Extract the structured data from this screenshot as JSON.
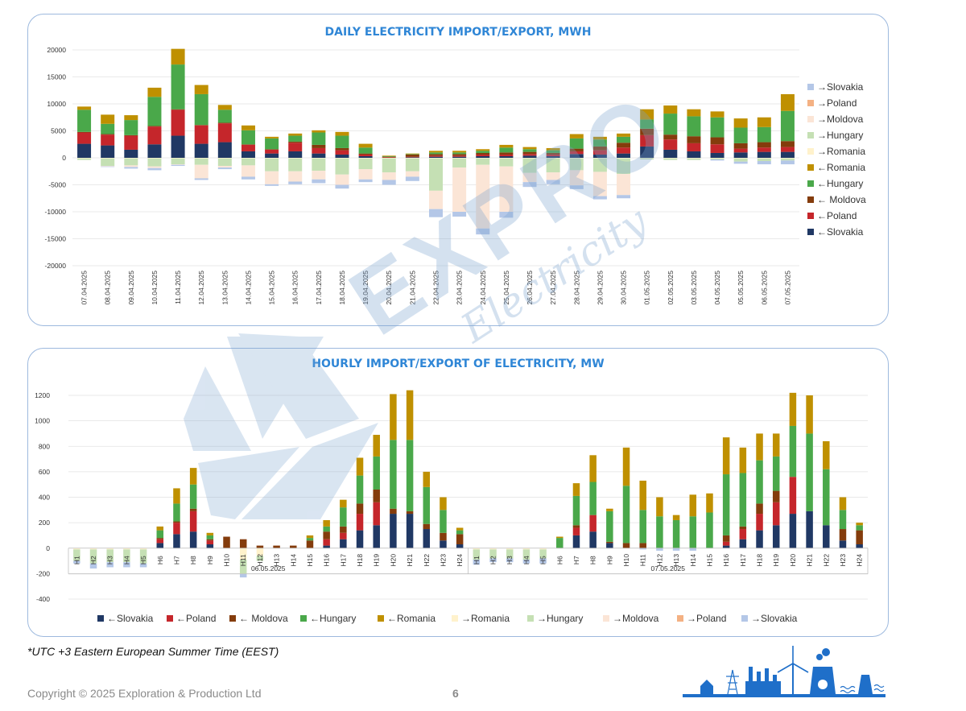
{
  "colors": {
    "imp_slovakia": "#203864",
    "imp_poland": "#c5262b",
    "imp_moldova": "#843c0c",
    "imp_hungary": "#4aa84a",
    "imp_romania": "#bf9000",
    "exp_romania": "#fff2cc",
    "exp_hungary": "#c5e0b4",
    "exp_moldova": "#fbe5d6",
    "exp_poland": "#f4b183",
    "exp_slovakia": "#b4c7e7",
    "title": "#2f86d6",
    "border": "#9db9de"
  },
  "daily": {
    "chart_data": {
      "type": "bar",
      "title": "DAILY ELECTRICITY IMPORT/EXPORT, MWH",
      "ylim": [
        -20000,
        20000
      ],
      "yticks": [
        20000,
        15000,
        10000,
        5000,
        0,
        -5000,
        -10000,
        -15000,
        -20000
      ],
      "grid": true,
      "legend_position": "right",
      "categories": [
        "07.04.2025",
        "08.04.2025",
        "09.04.2025",
        "10.04.2025",
        "11.04.2025",
        "12.04.2025",
        "13.04.2025",
        "14.04.2025",
        "15.04.2025",
        "16.04.2025",
        "17.04.2025",
        "18.04.2025",
        "19.04.2025",
        "20.04.2025",
        "21.04.2025",
        "22.04.2025",
        "23.04.2025",
        "24.04.2025",
        "25.04.2025",
        "26.04.2025",
        "27.04.2025",
        "28.04.2025",
        "29.04.2025",
        "30.04.2025",
        "01.05.2025",
        "02.05.2025",
        "03.05.2025",
        "04.05.2025",
        "05.05.2025",
        "06.05.2025",
        "07.05.2025"
      ],
      "series": [
        {
          "name": "←Slovakia",
          "key": "imp_slovakia",
          "values": [
            2600,
            2300,
            1500,
            2500,
            4100,
            2600,
            2900,
            1200,
            800,
            1200,
            800,
            600,
            300,
            0,
            100,
            200,
            200,
            300,
            300,
            400,
            300,
            700,
            600,
            800,
            2100,
            1500,
            1200,
            900,
            1000,
            1100,
            1100
          ]
        },
        {
          "name": "←Poland",
          "key": "imp_poland",
          "values": [
            2100,
            2000,
            2600,
            3300,
            4800,
            3400,
            3500,
            1200,
            700,
            1600,
            1000,
            800,
            300,
            100,
            100,
            200,
            200,
            300,
            300,
            300,
            300,
            500,
            800,
            1100,
            2100,
            1900,
            1500,
            1600,
            700,
            800,
            900
          ]
        },
        {
          "name": "← Moldova",
          "key": "imp_moldova",
          "values": [
            100,
            100,
            100,
            100,
            100,
            100,
            100,
            100,
            100,
            200,
            600,
            400,
            200,
            100,
            400,
            300,
            300,
            300,
            400,
            400,
            300,
            500,
            700,
            900,
            1200,
            900,
            1300,
            1300,
            1000,
            1000,
            1100
          ]
        },
        {
          "name": "←Hungary",
          "key": "imp_hungary",
          "values": [
            4100,
            1900,
            2800,
            5400,
            8300,
            5700,
            2400,
            2600,
            2000,
            1100,
            2300,
            2300,
            1100,
            100,
            100,
            300,
            300,
            400,
            900,
            500,
            500,
            1900,
            1300,
            1100,
            1700,
            3900,
            3700,
            3700,
            2900,
            2800,
            5600
          ]
        },
        {
          "name": "←Romania",
          "key": "imp_romania",
          "values": [
            600,
            1700,
            900,
            1700,
            2900,
            1700,
            900,
            900,
            300,
            400,
            400,
            700,
            700,
            100,
            100,
            300,
            300,
            300,
            500,
            400,
            400,
            800,
            500,
            600,
            1900,
            1500,
            1300,
            1100,
            1700,
            1800,
            3100
          ]
        },
        {
          "name": "→Romania",
          "key": "exp_romania",
          "values": [
            -100,
            -100,
            -100,
            -100,
            -100,
            -100,
            -100,
            -100,
            -100,
            -100,
            -100,
            -100,
            -100,
            -100,
            -100,
            -100,
            -100,
            -100,
            -100,
            -100,
            -100,
            -100,
            -100,
            -100,
            -100,
            -100,
            -100,
            -100,
            -100,
            -100,
            -100
          ]
        },
        {
          "name": "→Hungary",
          "key": "exp_hungary",
          "values": [
            -300,
            -1400,
            -1300,
            -1500,
            -1100,
            -1200,
            -1400,
            -1300,
            -2400,
            -2400,
            -2300,
            -3000,
            -2000,
            -2600,
            -2400,
            -6000,
            -1700,
            -1200,
            -1500,
            -2700,
            -2600,
            -2200,
            -2500,
            -2900,
            -200,
            -300,
            -300,
            -200,
            -600,
            -500,
            -400
          ]
        },
        {
          "name": "→Moldova",
          "key": "exp_moldova",
          "values": [
            0,
            -100,
            -300,
            -300,
            -100,
            -2500,
            -300,
            -2100,
            -2400,
            -1900,
            -1600,
            -1900,
            -1900,
            -1400,
            -1000,
            -3400,
            -8200,
            -11800,
            -8400,
            -1700,
            -1400,
            -2800,
            -4500,
            -3900,
            0,
            0,
            0,
            0,
            0,
            0,
            0
          ]
        },
        {
          "name": "→Poland",
          "key": "exp_poland",
          "values": [
            0,
            0,
            0,
            0,
            0,
            0,
            0,
            0,
            0,
            0,
            0,
            0,
            0,
            0,
            0,
            0,
            0,
            0,
            0,
            0,
            0,
            0,
            0,
            0,
            0,
            0,
            0,
            0,
            0,
            0,
            0
          ]
        },
        {
          "name": "→Slovakia",
          "key": "exp_slovakia",
          "values": [
            0,
            -100,
            -300,
            -400,
            -200,
            -300,
            -300,
            -500,
            -300,
            -500,
            -700,
            -700,
            -500,
            -900,
            -800,
            -1500,
            -900,
            -1100,
            -1100,
            -900,
            -800,
            -700,
            -600,
            -600,
            0,
            0,
            0,
            -200,
            -400,
            -600,
            -700
          ]
        }
      ],
      "legend_order": [
        "exp_slovakia",
        "exp_poland",
        "exp_moldova",
        "exp_hungary",
        "exp_romania",
        "imp_romania",
        "imp_hungary",
        "imp_moldova",
        "imp_poland",
        "imp_slovakia"
      ]
    }
  },
  "hourly": {
    "chart_data": {
      "type": "bar",
      "title": "HOURLY IMPORT/EXPORT OF ELECTRICITY, MW",
      "ylim": [
        -400,
        1200
      ],
      "yticks": [
        1200,
        1000,
        800,
        600,
        400,
        200,
        0,
        -200,
        -400
      ],
      "grid": true,
      "legend_position": "bottom",
      "groups": [
        {
          "label": "06.05.2025",
          "hours": [
            "H1",
            "H2",
            "H3",
            "H4",
            "H5",
            "H6",
            "H7",
            "H8",
            "H9",
            "H10",
            "H11",
            "H12",
            "H13",
            "H14",
            "H15",
            "H16",
            "H17",
            "H18",
            "H19",
            "H20",
            "H21",
            "H22",
            "H23",
            "H24"
          ]
        },
        {
          "label": "07.05.2025",
          "hours": [
            "H1",
            "H2",
            "H3",
            "H4",
            "H5",
            "H6",
            "H7",
            "H8",
            "H9",
            "H10",
            "H11",
            "H12",
            "H13",
            "H14",
            "H15",
            "H16",
            "H17",
            "H18",
            "H19",
            "H20",
            "H21",
            "H22",
            "H23",
            "H24"
          ]
        }
      ],
      "series": [
        {
          "name": "←Slovakia",
          "key": "imp_slovakia",
          "values": [
            0,
            0,
            0,
            0,
            0,
            40,
            110,
            130,
            30,
            0,
            0,
            0,
            0,
            0,
            0,
            20,
            70,
            140,
            180,
            270,
            270,
            150,
            60,
            30,
            0,
            0,
            0,
            0,
            0,
            0,
            100,
            130,
            40,
            0,
            0,
            0,
            0,
            0,
            0,
            20,
            70,
            140,
            180,
            270,
            290,
            180,
            60,
            30
          ]
        },
        {
          "name": "←Poland",
          "key": "imp_poland",
          "values": [
            0,
            0,
            0,
            0,
            0,
            30,
            90,
            160,
            30,
            0,
            0,
            0,
            0,
            0,
            0,
            50,
            50,
            130,
            180,
            0,
            0,
            0,
            0,
            0,
            0,
            0,
            0,
            0,
            0,
            0,
            60,
            130,
            0,
            0,
            0,
            0,
            0,
            0,
            0,
            30,
            80,
            130,
            180,
            290,
            0,
            0,
            0,
            0
          ]
        },
        {
          "name": "← Moldova",
          "key": "imp_moldova",
          "values": [
            0,
            0,
            0,
            0,
            0,
            10,
            10,
            20,
            10,
            90,
            70,
            20,
            20,
            20,
            60,
            60,
            50,
            80,
            100,
            40,
            20,
            40,
            60,
            80,
            0,
            0,
            0,
            0,
            0,
            0,
            20,
            0,
            10,
            40,
            40,
            0,
            0,
            0,
            0,
            50,
            20,
            80,
            90,
            0,
            0,
            0,
            90,
            110
          ]
        },
        {
          "name": "←Hungary",
          "key": "imp_hungary",
          "values": [
            0,
            0,
            0,
            0,
            0,
            60,
            140,
            190,
            30,
            0,
            0,
            0,
            0,
            0,
            20,
            40,
            150,
            220,
            260,
            540,
            560,
            290,
            180,
            30,
            0,
            0,
            0,
            0,
            0,
            80,
            230,
            260,
            240,
            450,
            260,
            250,
            220,
            250,
            280,
            480,
            420,
            340,
            270,
            400,
            610,
            440,
            150,
            40
          ]
        },
        {
          "name": "←Romania",
          "key": "imp_romania",
          "values": [
            0,
            0,
            0,
            0,
            0,
            30,
            120,
            130,
            20,
            0,
            0,
            0,
            0,
            0,
            20,
            50,
            60,
            140,
            170,
            360,
            390,
            120,
            100,
            20,
            0,
            0,
            0,
            0,
            0,
            10,
            100,
            210,
            20,
            300,
            230,
            150,
            40,
            170,
            150,
            290,
            200,
            210,
            180,
            260,
            300,
            220,
            100,
            20
          ]
        },
        {
          "name": "→Romania",
          "key": "exp_romania",
          "values": [
            -10,
            -10,
            -10,
            -10,
            -10,
            0,
            0,
            0,
            0,
            0,
            -90,
            -60,
            0,
            0,
            0,
            0,
            0,
            0,
            0,
            0,
            0,
            0,
            0,
            0,
            -10,
            -10,
            -10,
            -10,
            -10,
            0,
            0,
            0,
            0,
            0,
            0,
            0,
            0,
            0,
            0,
            0,
            0,
            0,
            0,
            0,
            0,
            0,
            0,
            0
          ]
        },
        {
          "name": "→Hungary",
          "key": "exp_hungary",
          "values": [
            -90,
            -110,
            -100,
            -100,
            -110,
            0,
            0,
            0,
            0,
            0,
            -110,
            -40,
            0,
            0,
            0,
            0,
            0,
            0,
            0,
            0,
            0,
            0,
            0,
            0,
            -80,
            -70,
            -70,
            -80,
            -70,
            0,
            0,
            0,
            0,
            0,
            0,
            0,
            0,
            0,
            0,
            0,
            0,
            0,
            0,
            0,
            0,
            0,
            0,
            0
          ]
        },
        {
          "name": "→Moldova",
          "key": "exp_moldova",
          "values": [
            0,
            0,
            0,
            0,
            0,
            0,
            0,
            0,
            0,
            0,
            0,
            0,
            0,
            0,
            0,
            0,
            0,
            0,
            0,
            0,
            0,
            0,
            0,
            0,
            0,
            0,
            0,
            0,
            0,
            0,
            0,
            0,
            0,
            0,
            0,
            0,
            0,
            0,
            0,
            0,
            0,
            0,
            0,
            0,
            0,
            0,
            0,
            0
          ]
        },
        {
          "name": "→Poland",
          "key": "exp_poland",
          "values": [
            0,
            0,
            0,
            0,
            0,
            0,
            0,
            0,
            0,
            0,
            0,
            0,
            0,
            0,
            0,
            0,
            0,
            0,
            0,
            0,
            0,
            0,
            0,
            0,
            0,
            0,
            0,
            0,
            0,
            0,
            0,
            0,
            0,
            0,
            0,
            0,
            0,
            0,
            0,
            0,
            0,
            0,
            0,
            0,
            0,
            0,
            0,
            0
          ]
        },
        {
          "name": "→Slovakia",
          "key": "exp_slovakia",
          "values": [
            -20,
            -40,
            -40,
            -40,
            -30,
            0,
            0,
            0,
            0,
            0,
            -30,
            0,
            0,
            0,
            0,
            0,
            0,
            0,
            0,
            0,
            0,
            0,
            0,
            0,
            -40,
            -30,
            -30,
            -30,
            -40,
            0,
            0,
            0,
            0,
            0,
            -10,
            -20,
            -20,
            -20,
            0,
            0,
            0,
            0,
            0,
            0,
            0,
            0,
            0,
            0
          ]
        }
      ],
      "legend_order": [
        "imp_slovakia",
        "imp_poland",
        "imp_moldova",
        "imp_hungary",
        "imp_romania",
        "exp_romania",
        "exp_hungary",
        "exp_moldova",
        "exp_poland",
        "exp_slovakia"
      ]
    }
  },
  "footnote": "*UTC +3 Eastern European Summer Time (EEST)",
  "copyright": "Copyright © 2025 Exploration & Production Ltd",
  "page_number": "6",
  "watermark": {
    "brand": "EXPRO",
    "sub": "Electricity"
  }
}
